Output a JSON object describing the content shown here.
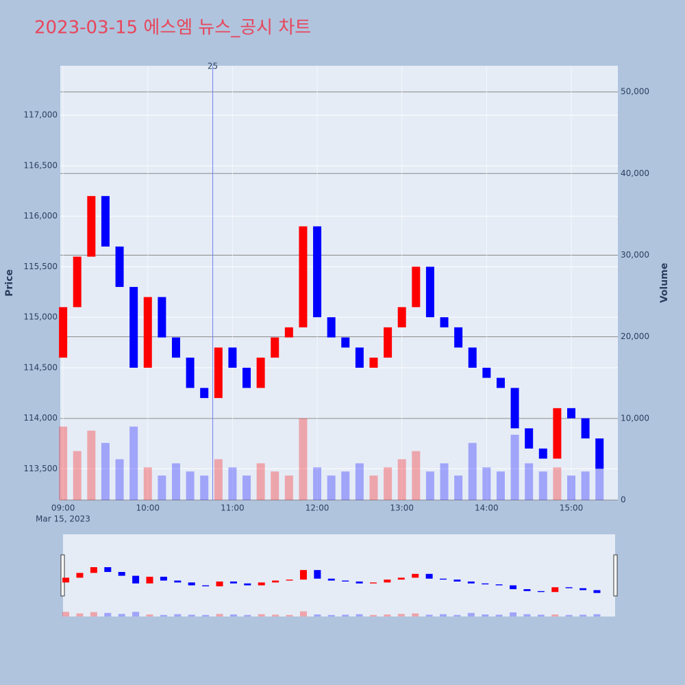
{
  "chart_data": {
    "type": "candlestick",
    "title": "2023-03-15 에스엠 뉴스_공시 차트",
    "y_label": "Price",
    "y2_label": "Volume",
    "x_sublabel": "Mar 15, 2023",
    "x": [
      "09:00",
      "09:10",
      "09:20",
      "09:30",
      "09:40",
      "09:50",
      "10:00",
      "10:10",
      "10:20",
      "10:30",
      "10:40",
      "10:50",
      "11:00",
      "11:10",
      "11:20",
      "11:30",
      "11:40",
      "11:50",
      "12:00",
      "12:10",
      "12:20",
      "12:30",
      "12:40",
      "12:50",
      "13:00",
      "13:10",
      "13:20",
      "13:30",
      "13:40",
      "13:50",
      "14:00",
      "14:10",
      "14:20",
      "14:30",
      "14:40",
      "14:50",
      "15:00",
      "15:10",
      "15:20"
    ],
    "open": [
      114600,
      115100,
      115600,
      116200,
      115700,
      115300,
      114500,
      115200,
      114800,
      114600,
      114300,
      114200,
      114700,
      114500,
      114300,
      114600,
      114800,
      114900,
      115900,
      115000,
      114800,
      114700,
      114500,
      114600,
      114900,
      115100,
      115500,
      115000,
      114900,
      114700,
      114500,
      114400,
      114300,
      113900,
      113700,
      113600,
      114100,
      114000,
      113800
    ],
    "close": [
      115100,
      115600,
      116200,
      115700,
      115300,
      114500,
      115200,
      114800,
      114600,
      114300,
      114200,
      114700,
      114500,
      114300,
      114600,
      114800,
      114900,
      115900,
      115000,
      114800,
      114700,
      114500,
      114600,
      114900,
      115100,
      115500,
      115000,
      114900,
      114700,
      114500,
      114400,
      114300,
      113900,
      113700,
      113600,
      114100,
      114000,
      113800,
      113500
    ],
    "volume": [
      9000,
      6000,
      8500,
      7000,
      5000,
      9000,
      4000,
      3000,
      4500,
      3500,
      3000,
      5000,
      4000,
      3000,
      4500,
      3500,
      3000,
      10000,
      4000,
      3000,
      3500,
      4500,
      3000,
      4000,
      5000,
      6000,
      3500,
      4500,
      3000,
      7000,
      4000,
      3500,
      8000,
      4500,
      3500,
      4000,
      3000,
      3500,
      4500
    ],
    "up_color": "#ff0000",
    "down_color": "#0000ff",
    "xlim": [
      "08:58",
      "15:33"
    ],
    "xticks": [
      "09:00",
      "10:00",
      "11:00",
      "12:00",
      "13:00",
      "14:00",
      "15:00"
    ],
    "ylim": [
      113190,
      117490
    ],
    "yticks": [
      {
        "value": 113500,
        "label": "113,500"
      },
      {
        "value": 114000,
        "label": "114,000"
      },
      {
        "value": 114500,
        "label": "114,500"
      },
      {
        "value": 115000,
        "label": "115,000"
      },
      {
        "value": 115500,
        "label": "115,500"
      },
      {
        "value": 116000,
        "label": "116,000"
      },
      {
        "value": 116500,
        "label": "116,500"
      },
      {
        "value": 117000,
        "label": "117,000"
      }
    ],
    "y2lim": [
      0,
      53200
    ],
    "y2ticks": [
      0,
      {
        "value": 10000,
        "label": "10,000"
      },
      {
        "value": 20000,
        "label": "20,000"
      },
      {
        "value": 30000,
        "label": "30,000"
      },
      {
        "value": 40000,
        "label": "40,000"
      },
      {
        "value": 50000,
        "label": "50,000"
      }
    ],
    "annotation": {
      "text": "25",
      "x": "10:46"
    },
    "grid": true
  }
}
